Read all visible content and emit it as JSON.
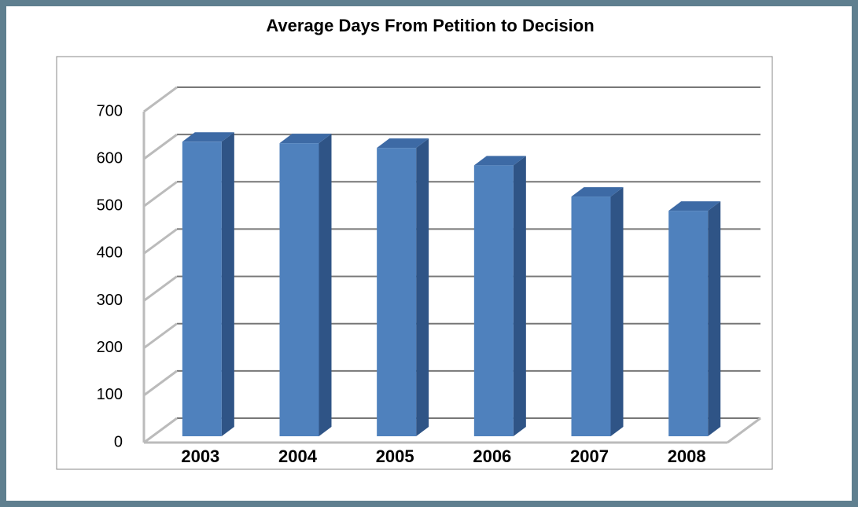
{
  "chart_data": {
    "type": "bar",
    "title": "Average Days From Petition to Decision",
    "categories": [
      "2003",
      "2004",
      "2005",
      "2006",
      "2007",
      "2008"
    ],
    "values": [
      623,
      620,
      610,
      573,
      507,
      477
    ],
    "color": "#4f81bd",
    "ylim": [
      0,
      700
    ],
    "yticks": [
      0,
      100,
      200,
      300,
      400,
      500,
      600,
      700
    ],
    "grid": true
  }
}
